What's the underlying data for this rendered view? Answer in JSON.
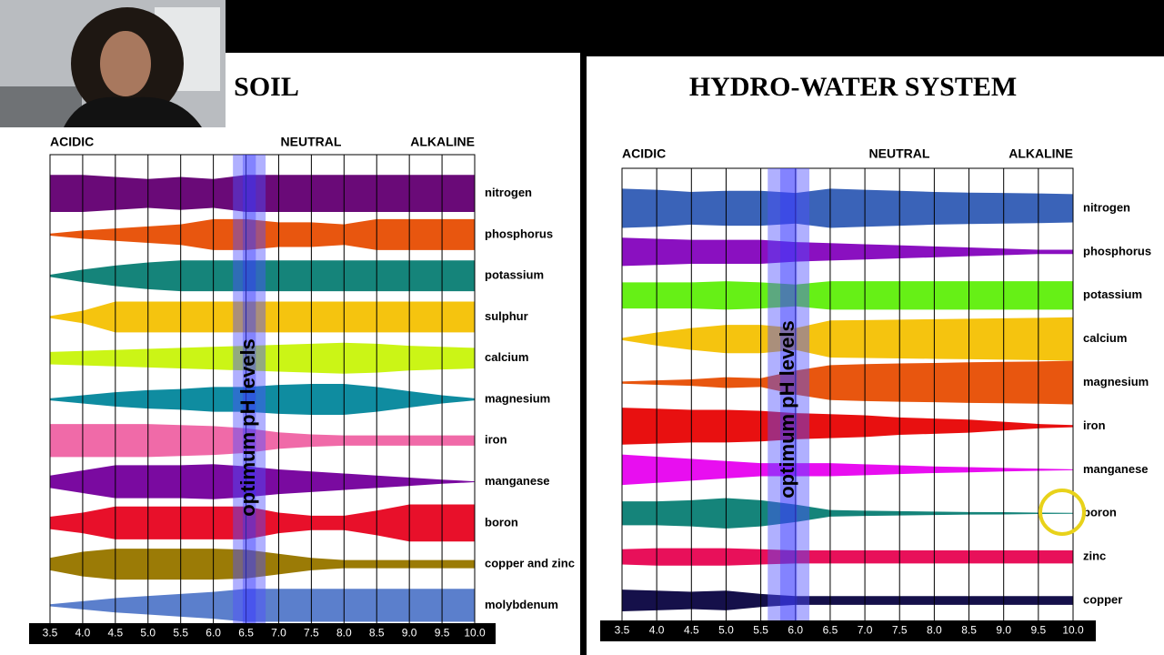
{
  "chart_data": [
    {
      "type": "band",
      "title": "SOIL",
      "zones": [
        "ACIDIC",
        "NEUTRAL",
        "ALKALINE"
      ],
      "x": [
        3.5,
        4,
        4.5,
        5,
        5.5,
        6,
        6.5,
        7,
        7.5,
        8,
        8.5,
        9,
        9.5,
        10
      ],
      "xlim": [
        3.5,
        10
      ],
      "xticks": [
        3.5,
        {
          "value": 4,
          "label": "4.0"
        },
        4.5,
        {
          "value": 5,
          "label": "5.0"
        },
        5.5,
        {
          "value": 6,
          "label": "6.0"
        },
        6.5,
        {
          "value": 7,
          "label": "7.0"
        },
        7.5,
        {
          "value": 8,
          "label": "8.0"
        },
        8.5,
        {
          "value": 9,
          "label": "9.0"
        },
        9.5,
        {
          "value": 10,
          "label": "10.0"
        }
      ],
      "optimum_range": [
        6.3,
        6.8
      ],
      "optimum_label": "optimum pH levels",
      "series": [
        {
          "name": "nitrogen",
          "color": "#6a0a78",
          "values": [
            0.9,
            0.9,
            0.8,
            0.7,
            0.8,
            0.7,
            0.9,
            0.9,
            0.9,
            0.9,
            0.9,
            0.9,
            0.9,
            0.9
          ]
        },
        {
          "name": "phosphorus",
          "color": "#e8560f",
          "values": [
            0.05,
            0.2,
            0.3,
            0.4,
            0.5,
            0.75,
            0.75,
            0.6,
            0.6,
            0.5,
            0.75,
            0.75,
            0.75,
            0.75
          ]
        },
        {
          "name": "potassium",
          "color": "#15847a",
          "values": [
            0.05,
            0.3,
            0.5,
            0.65,
            0.75,
            0.75,
            0.75,
            0.75,
            0.75,
            0.75,
            0.75,
            0.75,
            0.75,
            0.75
          ]
        },
        {
          "name": "sulphur",
          "color": "#f5c40f",
          "values": [
            0.05,
            0.3,
            0.75,
            0.75,
            0.75,
            0.75,
            0.75,
            0.75,
            0.75,
            0.75,
            0.75,
            0.75,
            0.75,
            0.75
          ]
        },
        {
          "name": "calcium",
          "color": "#cbf516",
          "values": [
            0.3,
            0.35,
            0.4,
            0.45,
            0.5,
            0.55,
            0.6,
            0.65,
            0.7,
            0.75,
            0.7,
            0.6,
            0.55,
            0.5
          ]
        },
        {
          "name": "magnesium",
          "color": "#0f8ca0",
          "values": [
            0.05,
            0.2,
            0.35,
            0.45,
            0.5,
            0.6,
            0.6,
            0.7,
            0.75,
            0.75,
            0.6,
            0.4,
            0.2,
            0.05
          ]
        },
        {
          "name": "iron",
          "color": "#f06aa8",
          "values": [
            0.8,
            0.8,
            0.8,
            0.8,
            0.75,
            0.7,
            0.6,
            0.4,
            0.3,
            0.25,
            0.25,
            0.25,
            0.25,
            0.25
          ]
        },
        {
          "name": "manganese",
          "color": "#7a0aa0",
          "values": [
            0.3,
            0.55,
            0.8,
            0.8,
            0.8,
            0.85,
            0.75,
            0.6,
            0.5,
            0.4,
            0.3,
            0.2,
            0.1,
            0.02
          ]
        },
        {
          "name": "boron",
          "color": "#e8102a",
          "values": [
            0.3,
            0.5,
            0.8,
            0.8,
            0.8,
            0.8,
            0.8,
            0.5,
            0.35,
            0.35,
            0.6,
            0.9,
            0.9,
            0.9
          ]
        },
        {
          "name": "copper and zinc",
          "color": "#9b7b06",
          "values": [
            0.3,
            0.6,
            0.75,
            0.75,
            0.75,
            0.75,
            0.7,
            0.5,
            0.3,
            0.2,
            0.2,
            0.2,
            0.2,
            0.2
          ]
        },
        {
          "name": "molybdenum",
          "color": "#5b7fcc",
          "values": [
            0.05,
            0.2,
            0.35,
            0.45,
            0.55,
            0.65,
            0.8,
            0.8,
            0.8,
            0.8,
            0.8,
            0.8,
            0.8,
            0.8
          ]
        }
      ]
    },
    {
      "type": "band",
      "title": "HYDRO-WATER SYSTEM",
      "zones": [
        "ACIDIC",
        "NEUTRAL",
        "ALKALINE"
      ],
      "x": [
        3.5,
        4,
        4.5,
        5,
        5.5,
        6,
        6.5,
        7,
        7.5,
        8,
        8.5,
        9,
        9.5,
        10
      ],
      "xlim": [
        3.5,
        10
      ],
      "xticks": [
        3.5,
        {
          "value": 4,
          "label": "4.0"
        },
        4.5,
        {
          "value": 5,
          "label": "5.0"
        },
        5.5,
        {
          "value": 6,
          "label": "6.0"
        },
        6.5,
        {
          "value": 7,
          "label": "7.0"
        },
        7.5,
        {
          "value": 8,
          "label": "8.0"
        },
        8.5,
        {
          "value": 9,
          "label": "9.0"
        },
        9.5,
        {
          "value": 10,
          "label": "10.0"
        }
      ],
      "optimum_range": [
        5.6,
        6.2
      ],
      "optimum_label": "optimum pH levels",
      "series": [
        {
          "name": "nitrogen",
          "color": "#3a63b8",
          "values": [
            0.9,
            0.85,
            0.75,
            0.8,
            0.8,
            0.7,
            0.9,
            0.85,
            0.8,
            0.75,
            0.72,
            0.7,
            0.68,
            0.65
          ]
        },
        {
          "name": "phosphorus",
          "color": "#8a10c0",
          "values": [
            0.65,
            0.6,
            0.55,
            0.55,
            0.55,
            0.45,
            0.4,
            0.35,
            0.3,
            0.25,
            0.2,
            0.15,
            0.1,
            0.1
          ]
        },
        {
          "name": "potassium",
          "color": "#66f016",
          "values": [
            0.6,
            0.6,
            0.6,
            0.65,
            0.6,
            0.5,
            0.65,
            0.65,
            0.65,
            0.65,
            0.65,
            0.65,
            0.65,
            0.65
          ]
        },
        {
          "name": "calcium",
          "color": "#f5c40f",
          "values": [
            0.05,
            0.3,
            0.5,
            0.65,
            0.65,
            0.5,
            0.85,
            0.87,
            0.89,
            0.91,
            0.93,
            0.95,
            0.97,
            1.0
          ]
        },
        {
          "name": "magnesium",
          "color": "#e8560f",
          "values": [
            0.05,
            0.1,
            0.15,
            0.25,
            0.2,
            0.55,
            0.8,
            0.85,
            0.88,
            0.9,
            0.93,
            0.95,
            0.97,
            1.0
          ]
        },
        {
          "name": "iron",
          "color": "#e81010",
          "values": [
            0.85,
            0.8,
            0.75,
            0.75,
            0.7,
            0.6,
            0.55,
            0.5,
            0.4,
            0.35,
            0.3,
            0.2,
            0.1,
            0.05
          ]
        },
        {
          "name": "manganese",
          "color": "#e80ef0",
          "values": [
            0.7,
            0.6,
            0.5,
            0.4,
            0.3,
            0.3,
            0.3,
            0.25,
            0.2,
            0.15,
            0.12,
            0.08,
            0.05,
            0.02
          ]
        },
        {
          "name": "boron",
          "color": "#15847a",
          "values": [
            0.55,
            0.55,
            0.6,
            0.7,
            0.6,
            0.4,
            0.15,
            0.12,
            0.1,
            0.08,
            0.06,
            0.05,
            0.03,
            0.02
          ]
        },
        {
          "name": "zinc",
          "color": "#e8105a",
          "values": [
            0.35,
            0.4,
            0.4,
            0.4,
            0.35,
            0.3,
            0.3,
            0.3,
            0.3,
            0.3,
            0.3,
            0.3,
            0.3,
            0.3
          ]
        },
        {
          "name": "copper",
          "color": "#15104a",
          "values": [
            0.5,
            0.45,
            0.4,
            0.45,
            0.3,
            0.2,
            0.2,
            0.2,
            0.2,
            0.2,
            0.2,
            0.2,
            0.2,
            0.2
          ]
        }
      ]
    }
  ]
}
